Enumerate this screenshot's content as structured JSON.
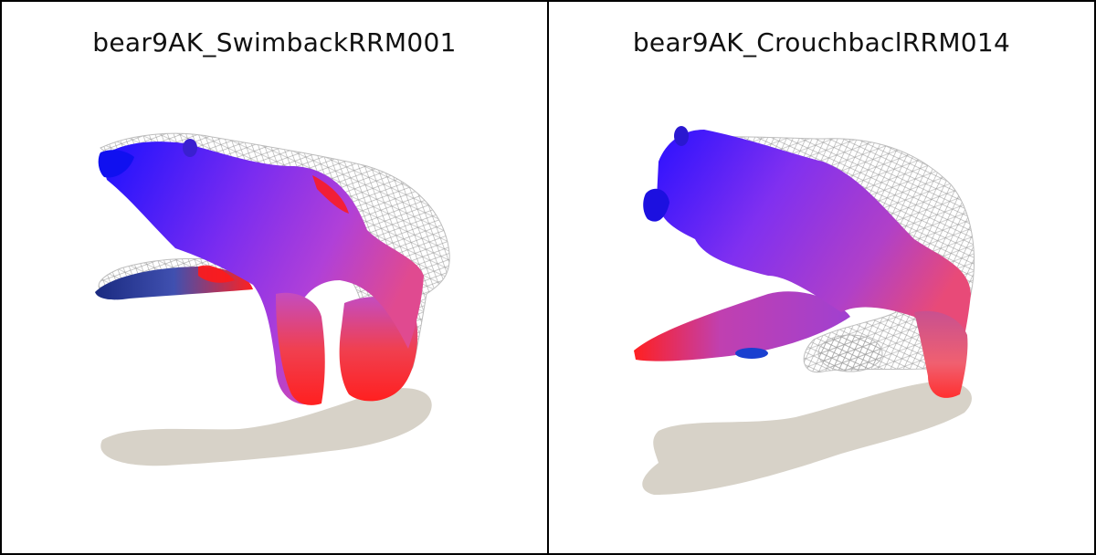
{
  "panels": [
    {
      "title": "bear9AK_SwimbackRRM001"
    },
    {
      "title": "bear9AK_CrouchbaclRRM014"
    }
  ],
  "colors": {
    "background": "#ffffff",
    "border": "#000000",
    "shadow": "#d7d2c8",
    "wireframe": "#9a9a9a",
    "blue": "#2a1dff",
    "purple": "#a640e0",
    "red": "#ff1010",
    "pink": "#e86a8a"
  }
}
